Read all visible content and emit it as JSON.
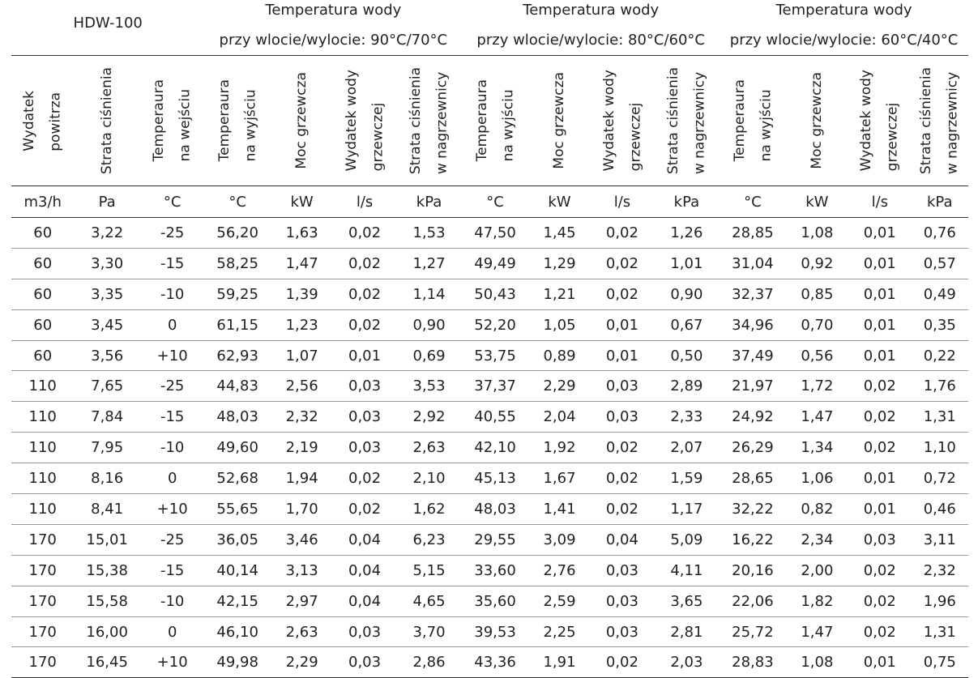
{
  "model": "HDW-100",
  "groups": [
    {
      "title": "Temperatura wody",
      "subtitle": "przy wlocie/wylocie: 90°C/70°C"
    },
    {
      "title": "Temperatura wody",
      "subtitle": "przy wlocie/wylocie: 80°C/60°C"
    },
    {
      "title": "Temperatura wody",
      "subtitle": "przy wlocie/wylocie: 60°C/40°C"
    }
  ],
  "col_headers": {
    "air_flow": [
      "Wydatek",
      "powitrza"
    ],
    "pressure_loss": [
      "Strata ciśnienia"
    ],
    "inlet_temp": [
      "Temperaura",
      "na wejściu"
    ],
    "outlet_temp": [
      "Temperaura",
      "na wyjściu"
    ],
    "heating_power": [
      "Moc grzewcza"
    ],
    "water_flow": [
      "Wydatek wody",
      "grzewczej"
    ],
    "heater_loss": [
      "Strata ciśnienia",
      "w nagrzewnicy"
    ]
  },
  "units": [
    "m3/h",
    "Pa",
    "°C",
    "°C",
    "kW",
    "l/s",
    "kPa",
    "°C",
    "kW",
    "l/s",
    "kPa",
    "°C",
    "kW",
    "l/s",
    "kPa"
  ],
  "rows": [
    [
      "60",
      "3,22",
      "-25",
      "56,20",
      "1,63",
      "0,02",
      "1,53",
      "47,50",
      "1,45",
      "0,02",
      "1,26",
      "28,85",
      "1,08",
      "0,01",
      "0,76"
    ],
    [
      "60",
      "3,30",
      "-15",
      "58,25",
      "1,47",
      "0,02",
      "1,27",
      "49,49",
      "1,29",
      "0,02",
      "1,01",
      "31,04",
      "0,92",
      "0,01",
      "0,57"
    ],
    [
      "60",
      "3,35",
      "-10",
      "59,25",
      "1,39",
      "0,02",
      "1,14",
      "50,43",
      "1,21",
      "0,02",
      "0,90",
      "32,37",
      "0,85",
      "0,01",
      "0,49"
    ],
    [
      "60",
      "3,45",
      "0",
      "61,15",
      "1,23",
      "0,02",
      "0,90",
      "52,20",
      "1,05",
      "0,01",
      "0,67",
      "34,96",
      "0,70",
      "0,01",
      "0,35"
    ],
    [
      "60",
      "3,56",
      "+10",
      "62,93",
      "1,07",
      "0,01",
      "0,69",
      "53,75",
      "0,89",
      "0,01",
      "0,50",
      "37,49",
      "0,56",
      "0,01",
      "0,22"
    ],
    [
      "110",
      "7,65",
      "-25",
      "44,83",
      "2,56",
      "0,03",
      "3,53",
      "37,37",
      "2,29",
      "0,03",
      "2,89",
      "21,97",
      "1,72",
      "0,02",
      "1,76"
    ],
    [
      "110",
      "7,84",
      "-15",
      "48,03",
      "2,32",
      "0,03",
      "2,92",
      "40,55",
      "2,04",
      "0,03",
      "2,33",
      "24,92",
      "1,47",
      "0,02",
      "1,31"
    ],
    [
      "110",
      "7,95",
      "-10",
      "49,60",
      "2,19",
      "0,03",
      "2,63",
      "42,10",
      "1,92",
      "0,02",
      "2,07",
      "26,29",
      "1,34",
      "0,02",
      "1,10"
    ],
    [
      "110",
      "8,16",
      "0",
      "52,68",
      "1,94",
      "0,02",
      "2,10",
      "45,13",
      "1,67",
      "0,02",
      "1,59",
      "28,65",
      "1,06",
      "0,01",
      "0,72"
    ],
    [
      "110",
      "8,41",
      "+10",
      "55,65",
      "1,70",
      "0,02",
      "1,62",
      "48,03",
      "1,41",
      "0,02",
      "1,17",
      "32,22",
      "0,82",
      "0,01",
      "0,46"
    ],
    [
      "170",
      "15,01",
      "-25",
      "36,05",
      "3,46",
      "0,04",
      "6,23",
      "29,55",
      "3,09",
      "0,04",
      "5,09",
      "16,22",
      "2,34",
      "0,03",
      "3,11"
    ],
    [
      "170",
      "15,38",
      "-15",
      "40,14",
      "3,13",
      "0,04",
      "5,15",
      "33,60",
      "2,76",
      "0,03",
      "4,11",
      "20,16",
      "2,00",
      "0,02",
      "2,32"
    ],
    [
      "170",
      "15,58",
      "-10",
      "42,15",
      "2,97",
      "0,04",
      "4,65",
      "35,60",
      "2,59",
      "0,03",
      "3,65",
      "22,06",
      "1,82",
      "0,02",
      "1,96"
    ],
    [
      "170",
      "16,00",
      "0",
      "46,10",
      "2,63",
      "0,03",
      "3,70",
      "39,53",
      "2,25",
      "0,03",
      "2,81",
      "25,72",
      "1,47",
      "0,02",
      "1,31"
    ],
    [
      "170",
      "16,45",
      "+10",
      "49,98",
      "2,29",
      "0,03",
      "2,86",
      "43,36",
      "1,91",
      "0,02",
      "2,03",
      "28,83",
      "1,08",
      "0,01",
      "0,75"
    ]
  ]
}
